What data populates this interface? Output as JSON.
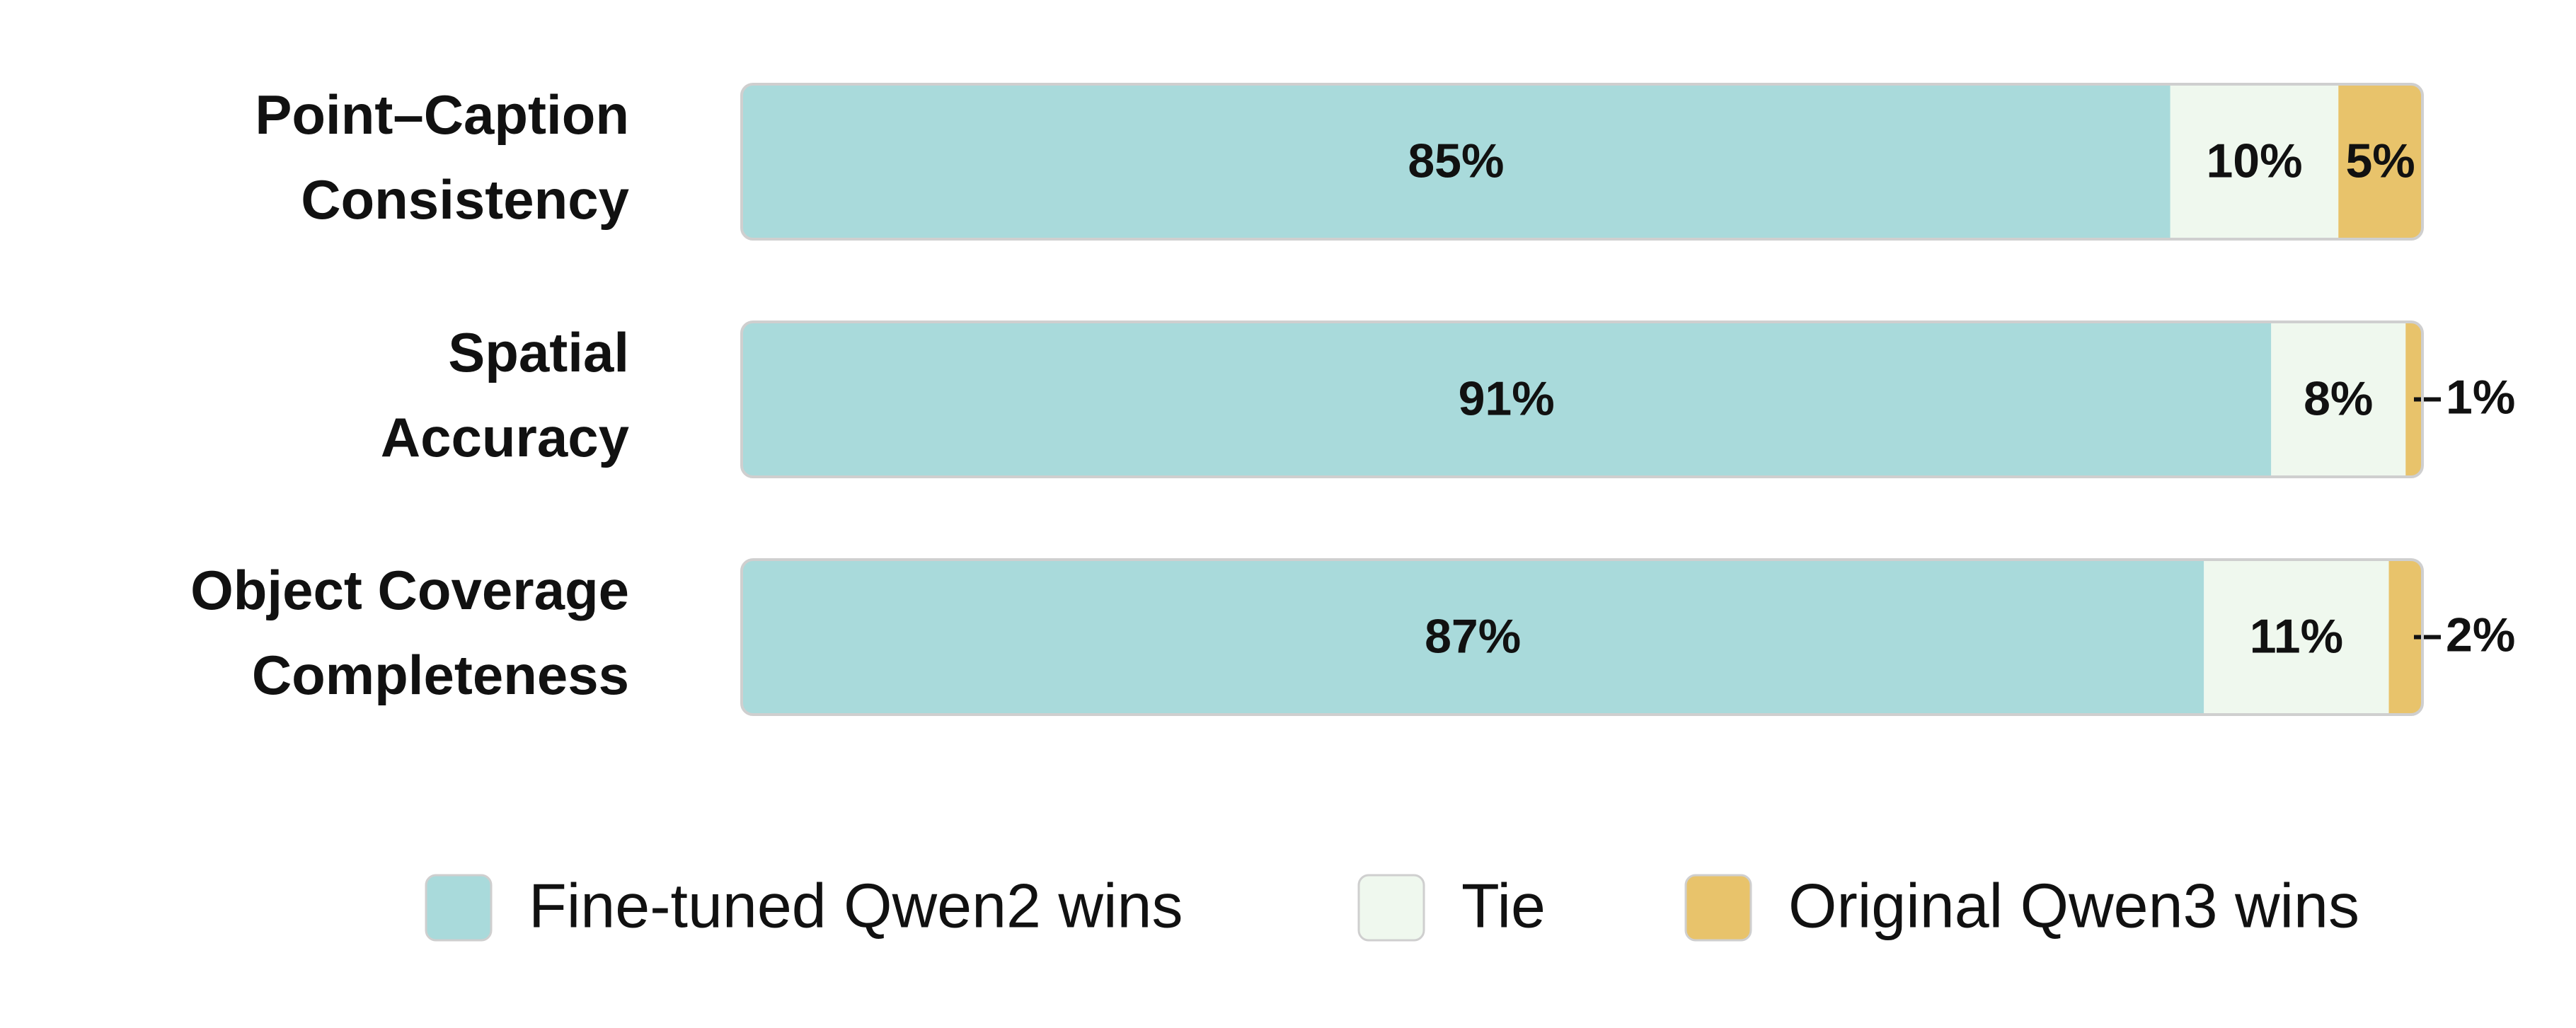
{
  "chart_data": {
    "type": "stacked-bar",
    "orientation": "horizontal",
    "categories": [
      [
        "Point–Caption",
        "Consistency"
      ],
      [
        "Spatial",
        "Accuracy"
      ],
      [
        "Object Coverage",
        "Completeness"
      ]
    ],
    "xlim": [
      0,
      100
    ],
    "series": [
      {
        "name": "Fine-tuned Qwen2 wins",
        "color": "#a9dadb",
        "values": [
          85,
          91,
          87
        ],
        "value_labels": [
          "85%",
          "91%",
          "87%"
        ]
      },
      {
        "name": "Tie",
        "color": "#eff8ee",
        "values": [
          10,
          8,
          11
        ],
        "value_labels": [
          "10%",
          "8%",
          "11%"
        ]
      },
      {
        "name": "Original Qwen3 wins",
        "color": "#e8c36b",
        "values": [
          5,
          1,
          2
        ],
        "value_labels": [
          "5%",
          "1%",
          "2%"
        ]
      }
    ]
  }
}
